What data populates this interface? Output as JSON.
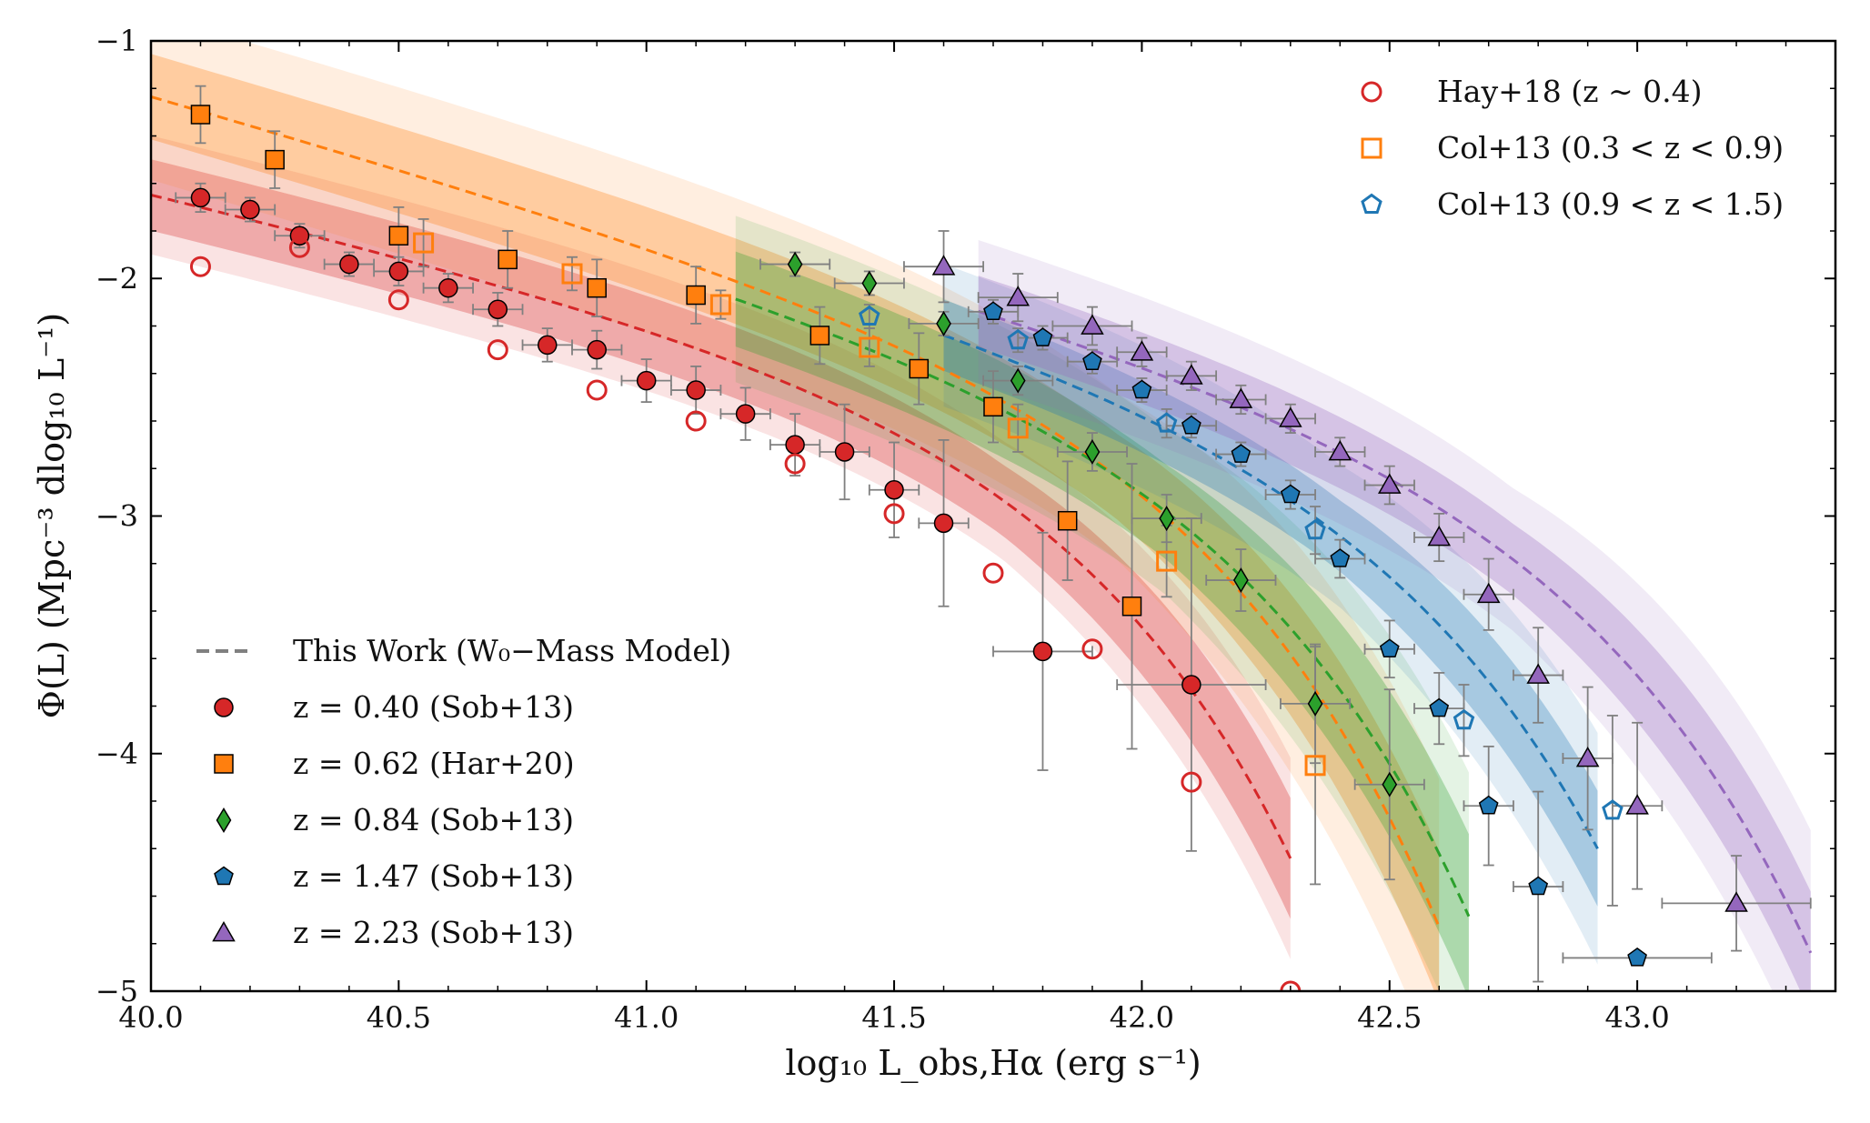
{
  "chart_data": {
    "type": "scatter",
    "title": "",
    "xlabel": "log₁₀ L_obs,Hα (erg s⁻¹)",
    "ylabel": "Φ(L) (Mpc⁻³ dlog₁₀ L⁻¹)",
    "xlim": [
      40.0,
      43.4
    ],
    "ylim": [
      -5,
      -1
    ],
    "x_ticks": [
      40.0,
      40.5,
      41.0,
      41.5,
      42.0,
      42.5,
      43.0
    ],
    "x_tick_labels": [
      "40.0",
      "40.5",
      "41.0",
      "41.5",
      "42.0",
      "42.5",
      "43.0"
    ],
    "y_ticks": [
      -5,
      -4,
      -3,
      -2,
      -1
    ],
    "y_tick_labels": [
      "−5",
      "−4",
      "−3",
      "−2",
      "−1"
    ],
    "legend_upper_right": [
      {
        "label": "Hay+18 (z ∼ 0.4)",
        "marker": "circle-open",
        "color": "#d62728"
      },
      {
        "label": "Col+13 (0.3 < z < 0.9)",
        "marker": "square-open",
        "color": "#ff7f0e"
      },
      {
        "label": "Col+13 (0.9 < z < 1.5)",
        "marker": "pentagon-open",
        "color": "#1f77b4"
      }
    ],
    "legend_lower_left": [
      {
        "label": "This Work (W₀−Mass Model)",
        "marker": "dashed-line",
        "color": "#808080"
      },
      {
        "label": "z = 0.40 (Sob+13)",
        "marker": "circle",
        "color": "#d62728"
      },
      {
        "label": "z = 0.62 (Har+20)",
        "marker": "square",
        "color": "#ff7f0e"
      },
      {
        "label": "z = 0.84 (Sob+13)",
        "marker": "diamond",
        "color": "#2ca02c"
      },
      {
        "label": "z = 1.47 (Sob+13)",
        "marker": "pentagon",
        "color": "#1f77b4"
      },
      {
        "label": "z = 2.23 (Sob+13)",
        "marker": "triangle",
        "color": "#9467bd"
      }
    ],
    "models": [
      {
        "name": "z=0.40",
        "color": "#d62728",
        "x_range": [
          40.0,
          42.3
        ],
        "phi_star": -2.5,
        "log_lstar": 41.72,
        "alpha": -1.5,
        "band_inner": 0.15,
        "band_outer": 0.25
      },
      {
        "name": "z=0.62",
        "color": "#ff7f0e",
        "x_range": [
          40.0,
          42.6
        ],
        "phi_star": -2.4,
        "log_lstar": 41.95,
        "alpha": -1.6,
        "band_inner": 0.18,
        "band_outer": 0.35
      },
      {
        "name": "z=0.84",
        "color": "#2ca02c",
        "x_range": [
          41.18,
          42.66
        ],
        "phi_star": -2.55,
        "log_lstar": 42.05,
        "alpha": -1.6,
        "band_inner": 0.2,
        "band_outer": 0.35
      },
      {
        "name": "z=1.47",
        "color": "#1f77b4",
        "x_range": [
          41.6,
          42.92
        ],
        "phi_star": -2.65,
        "log_lstar": 42.4,
        "alpha": -1.6,
        "band_inner": 0.15,
        "band_outer": 0.3
      },
      {
        "name": "z=2.23",
        "color": "#9467bd",
        "x_range": [
          41.67,
          43.35
        ],
        "phi_star": -2.75,
        "log_lstar": 42.75,
        "alpha": -1.6,
        "band_inner": 0.15,
        "band_outer": 0.3
      }
    ],
    "series": [
      {
        "name": "z = 0.40 (Sob+13)",
        "marker": "circle",
        "filled": true,
        "color": "#d62728",
        "points": [
          {
            "x": 40.1,
            "y": -1.66,
            "xerr": 0.05,
            "yerr": 0.06
          },
          {
            "x": 40.2,
            "y": -1.71,
            "xerr": 0.05,
            "yerr": 0.05
          },
          {
            "x": 40.3,
            "y": -1.82,
            "xerr": 0.05,
            "yerr": 0.05
          },
          {
            "x": 40.4,
            "y": -1.94,
            "xerr": 0.05,
            "yerr": 0.05
          },
          {
            "x": 40.5,
            "y": -1.97,
            "xerr": 0.05,
            "yerr": 0.06
          },
          {
            "x": 40.6,
            "y": -2.04,
            "xerr": 0.05,
            "yerr": 0.06
          },
          {
            "x": 40.7,
            "y": -2.13,
            "xerr": 0.05,
            "yerr": 0.07
          },
          {
            "x": 40.8,
            "y": -2.28,
            "xerr": 0.05,
            "yerr": 0.07
          },
          {
            "x": 40.9,
            "y": -2.3,
            "xerr": 0.05,
            "yerr": 0.08
          },
          {
            "x": 41.0,
            "y": -2.43,
            "xerr": 0.05,
            "yerr": 0.09
          },
          {
            "x": 41.1,
            "y": -2.47,
            "xerr": 0.05,
            "yerr": 0.1
          },
          {
            "x": 41.2,
            "y": -2.57,
            "xerr": 0.05,
            "yerr": 0.11
          },
          {
            "x": 41.3,
            "y": -2.7,
            "xerr": 0.05,
            "yerr": 0.13
          },
          {
            "x": 41.4,
            "y": -2.73,
            "xerr": 0.05,
            "yerr": 0.2
          },
          {
            "x": 41.5,
            "y": -2.89,
            "xerr": 0.05,
            "yerr": 0.2
          },
          {
            "x": 41.6,
            "y": -3.03,
            "xerr": 0.05,
            "yerr": 0.35
          },
          {
            "x": 41.8,
            "y": -3.57,
            "xerr": 0.1,
            "yerr": 0.5
          },
          {
            "x": 42.1,
            "y": -3.71,
            "xerr": 0.15,
            "yerr": 0.7
          }
        ]
      },
      {
        "name": "Hay+18 (z ∼ 0.4)",
        "marker": "circle",
        "filled": false,
        "color": "#d62728",
        "points": [
          {
            "x": 40.1,
            "y": -1.95
          },
          {
            "x": 40.3,
            "y": -1.87
          },
          {
            "x": 40.5,
            "y": -2.09
          },
          {
            "x": 40.7,
            "y": -2.3
          },
          {
            "x": 40.9,
            "y": -2.47
          },
          {
            "x": 41.1,
            "y": -2.6
          },
          {
            "x": 41.3,
            "y": -2.78
          },
          {
            "x": 41.5,
            "y": -2.99
          },
          {
            "x": 41.7,
            "y": -3.24
          },
          {
            "x": 41.9,
            "y": -3.56
          },
          {
            "x": 42.1,
            "y": -4.12
          },
          {
            "x": 42.3,
            "y": -5.0
          }
        ]
      },
      {
        "name": "z = 0.62 (Har+20)",
        "marker": "square",
        "filled": true,
        "color": "#ff7f0e",
        "points": [
          {
            "x": 40.1,
            "y": -1.31,
            "xerr": 0.0,
            "yerr": 0.12
          },
          {
            "x": 40.25,
            "y": -1.5,
            "xerr": 0.0,
            "yerr": 0.12
          },
          {
            "x": 40.5,
            "y": -1.82,
            "xerr": 0.0,
            "yerr": 0.12
          },
          {
            "x": 40.72,
            "y": -1.92,
            "xerr": 0.0,
            "yerr": 0.12
          },
          {
            "x": 40.9,
            "y": -2.04,
            "xerr": 0.0,
            "yerr": 0.12
          },
          {
            "x": 41.1,
            "y": -2.07,
            "xerr": 0.0,
            "yerr": 0.12
          },
          {
            "x": 41.35,
            "y": -2.24,
            "xerr": 0.0,
            "yerr": 0.12
          },
          {
            "x": 41.55,
            "y": -2.38,
            "xerr": 0.0,
            "yerr": 0.15
          },
          {
            "x": 41.7,
            "y": -2.54,
            "xerr": 0.0,
            "yerr": 0.15
          },
          {
            "x": 41.85,
            "y": -3.02,
            "xerr": 0.0,
            "yerr": 0.25
          },
          {
            "x": 41.98,
            "y": -3.38,
            "xerr": 0.0,
            "yerr": 0.6
          }
        ]
      },
      {
        "name": "Col+13 (0.3 < z < 0.9)",
        "marker": "square",
        "filled": false,
        "color": "#ff7f0e",
        "points": [
          {
            "x": 40.55,
            "y": -1.85,
            "xerr": 0.0,
            "yerr": 0.1
          },
          {
            "x": 40.85,
            "y": -1.98,
            "xerr": 0.0,
            "yerr": 0.07
          },
          {
            "x": 41.15,
            "y": -2.11,
            "xerr": 0.0,
            "yerr": 0.06
          },
          {
            "x": 41.45,
            "y": -2.29,
            "xerr": 0.0,
            "yerr": 0.08
          },
          {
            "x": 41.75,
            "y": -2.63,
            "xerr": 0.0,
            "yerr": 0.1
          },
          {
            "x": 42.05,
            "y": -3.19,
            "xerr": 0.0,
            "yerr": 0.15
          },
          {
            "x": 42.35,
            "y": -4.05,
            "xerr": 0.0,
            "yerr": 0.5
          }
        ]
      },
      {
        "name": "z = 0.84 (Sob+13)",
        "marker": "diamond",
        "filled": true,
        "color": "#2ca02c",
        "points": [
          {
            "x": 41.3,
            "y": -1.94,
            "xerr": 0.07,
            "yerr": 0.05
          },
          {
            "x": 41.45,
            "y": -2.02,
            "xerr": 0.07,
            "yerr": 0.05
          },
          {
            "x": 41.6,
            "y": -2.19,
            "xerr": 0.07,
            "yerr": 0.05
          },
          {
            "x": 41.75,
            "y": -2.43,
            "xerr": 0.07,
            "yerr": 0.06
          },
          {
            "x": 41.9,
            "y": -2.73,
            "xerr": 0.07,
            "yerr": 0.08
          },
          {
            "x": 42.05,
            "y": -3.01,
            "xerr": 0.07,
            "yerr": 0.1
          },
          {
            "x": 42.2,
            "y": -3.27,
            "xerr": 0.07,
            "yerr": 0.13
          },
          {
            "x": 42.35,
            "y": -3.79,
            "xerr": 0.07,
            "yerr": 0.25
          },
          {
            "x": 42.5,
            "y": -4.13,
            "xerr": 0.07,
            "yerr": 0.4
          }
        ]
      },
      {
        "name": "z = 1.47 (Sob+13)",
        "marker": "pentagon",
        "filled": true,
        "color": "#1f77b4",
        "points": [
          {
            "x": 41.7,
            "y": -2.14,
            "xerr": 0.05,
            "yerr": 0.05
          },
          {
            "x": 41.8,
            "y": -2.25,
            "xerr": 0.05,
            "yerr": 0.05
          },
          {
            "x": 41.9,
            "y": -2.35,
            "xerr": 0.05,
            "yerr": 0.05
          },
          {
            "x": 42.0,
            "y": -2.47,
            "xerr": 0.05,
            "yerr": 0.05
          },
          {
            "x": 42.1,
            "y": -2.62,
            "xerr": 0.05,
            "yerr": 0.05
          },
          {
            "x": 42.2,
            "y": -2.74,
            "xerr": 0.05,
            "yerr": 0.05
          },
          {
            "x": 42.3,
            "y": -2.91,
            "xerr": 0.05,
            "yerr": 0.06
          },
          {
            "x": 42.4,
            "y": -3.18,
            "xerr": 0.05,
            "yerr": 0.08
          },
          {
            "x": 42.5,
            "y": -3.56,
            "xerr": 0.05,
            "yerr": 0.12
          },
          {
            "x": 42.6,
            "y": -3.81,
            "xerr": 0.05,
            "yerr": 0.15
          },
          {
            "x": 42.7,
            "y": -4.22,
            "xerr": 0.05,
            "yerr": 0.25
          },
          {
            "x": 42.8,
            "y": -4.56,
            "xerr": 0.05,
            "yerr": 0.4
          },
          {
            "x": 43.0,
            "y": -4.86,
            "xerr": 0.15,
            "yerr": 0.0
          }
        ]
      },
      {
        "name": "Col+13 (0.9 < z < 1.5)",
        "marker": "pentagon",
        "filled": false,
        "color": "#1f77b4",
        "points": [
          {
            "x": 41.45,
            "y": -2.16,
            "xerr": 0.0,
            "yerr": 0.05
          },
          {
            "x": 41.75,
            "y": -2.26,
            "xerr": 0.0,
            "yerr": 0.05
          },
          {
            "x": 42.05,
            "y": -2.61,
            "xerr": 0.0,
            "yerr": 0.06
          },
          {
            "x": 42.35,
            "y": -3.06,
            "xerr": 0.0,
            "yerr": 0.1
          },
          {
            "x": 42.65,
            "y": -3.86,
            "xerr": 0.0,
            "yerr": 0.15
          },
          {
            "x": 42.95,
            "y": -4.24,
            "xerr": 0.0,
            "yerr": 0.4
          }
        ]
      },
      {
        "name": "z = 2.23 (Sob+13)",
        "marker": "triangle",
        "filled": true,
        "color": "#9467bd",
        "points": [
          {
            "x": 41.6,
            "y": -1.95,
            "xerr": 0.08,
            "yerr": 0.15
          },
          {
            "x": 41.75,
            "y": -2.08,
            "xerr": 0.08,
            "yerr": 0.1
          },
          {
            "x": 41.9,
            "y": -2.2,
            "xerr": 0.08,
            "yerr": 0.08
          },
          {
            "x": 42.0,
            "y": -2.31,
            "xerr": 0.05,
            "yerr": 0.06
          },
          {
            "x": 42.1,
            "y": -2.41,
            "xerr": 0.05,
            "yerr": 0.06
          },
          {
            "x": 42.2,
            "y": -2.51,
            "xerr": 0.05,
            "yerr": 0.06
          },
          {
            "x": 42.3,
            "y": -2.59,
            "xerr": 0.05,
            "yerr": 0.06
          },
          {
            "x": 42.4,
            "y": -2.73,
            "xerr": 0.05,
            "yerr": 0.06
          },
          {
            "x": 42.5,
            "y": -2.87,
            "xerr": 0.05,
            "yerr": 0.08
          },
          {
            "x": 42.6,
            "y": -3.09,
            "xerr": 0.05,
            "yerr": 0.1
          },
          {
            "x": 42.7,
            "y": -3.33,
            "xerr": 0.05,
            "yerr": 0.15
          },
          {
            "x": 42.8,
            "y": -3.67,
            "xerr": 0.05,
            "yerr": 0.2
          },
          {
            "x": 42.9,
            "y": -4.02,
            "xerr": 0.05,
            "yerr": 0.3
          },
          {
            "x": 43.0,
            "y": -4.22,
            "xerr": 0.05,
            "yerr": 0.35
          },
          {
            "x": 43.2,
            "y": -4.63,
            "xerr": 0.15,
            "yerr": 0.2
          }
        ]
      }
    ]
  }
}
